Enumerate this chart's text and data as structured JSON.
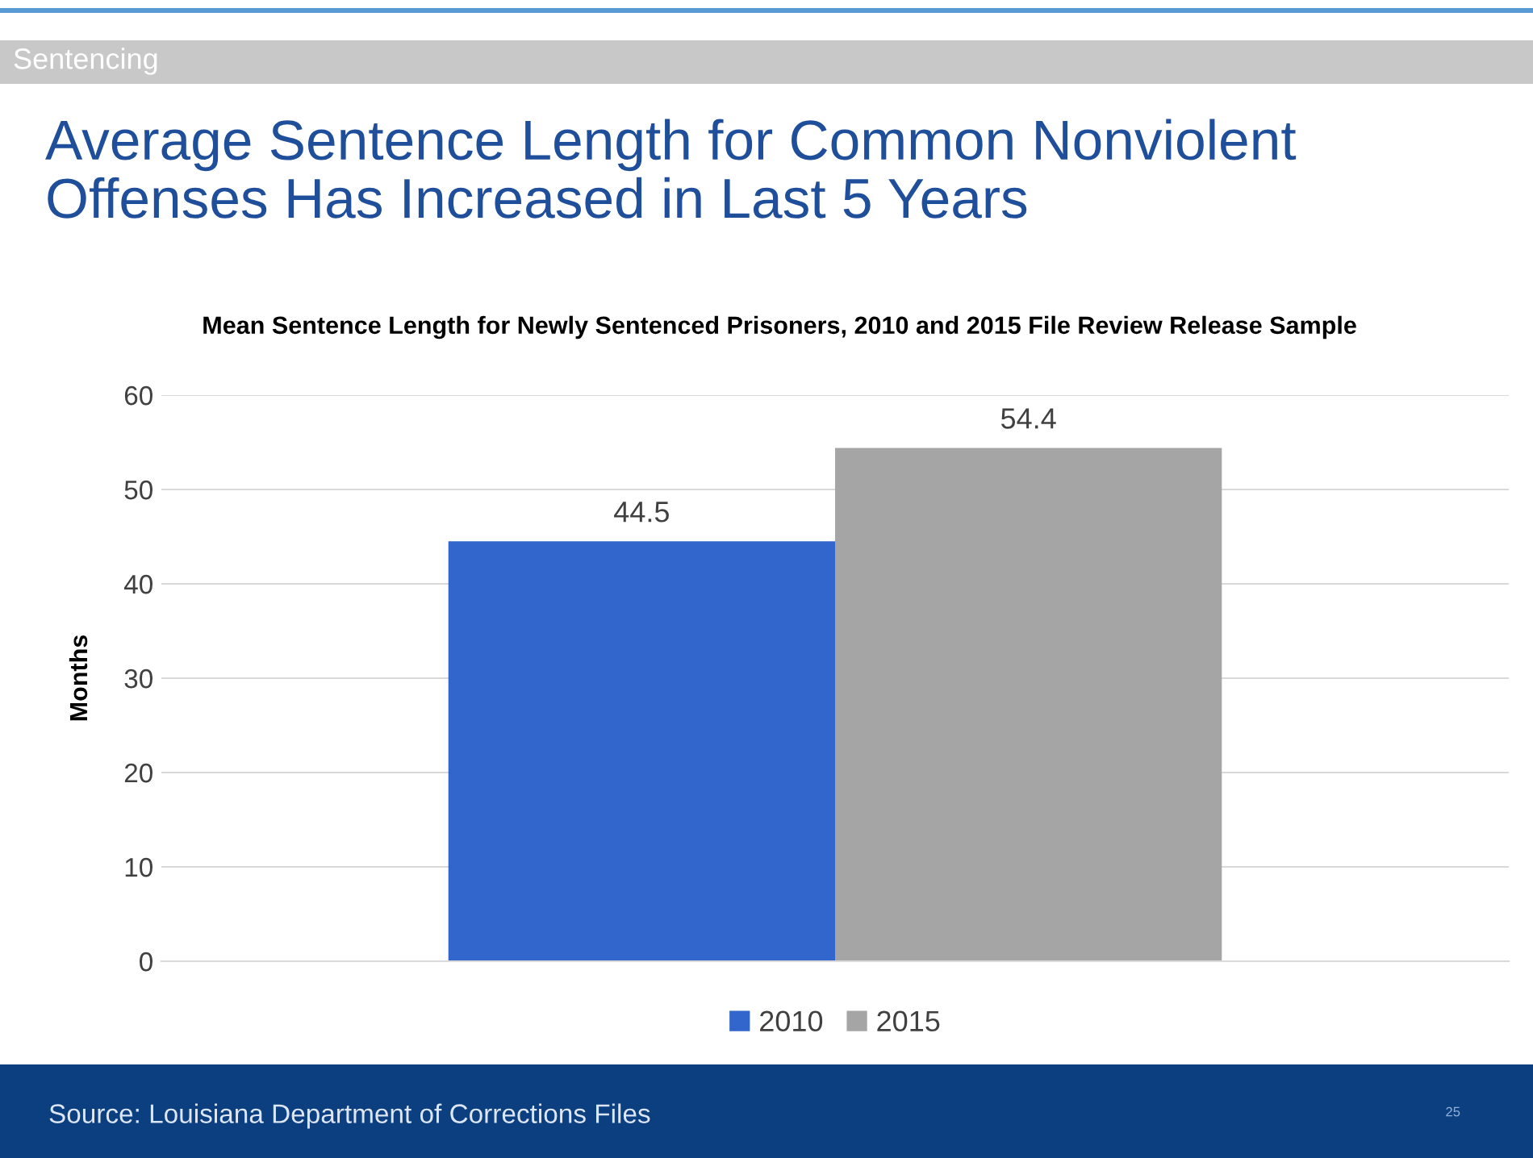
{
  "chart_data": {
    "type": "bar",
    "title": "Average Sentence Length for Common Nonviolent Offenses Has Increased in Last 5 Years",
    "subtitle": "Mean Sentence Length for Newly Sentenced Prisoners, 2010 and 2015 File Review Release Sample",
    "ylabel": "Months",
    "categories": [
      null
    ],
    "series": [
      {
        "name": "2010",
        "color": "#3366cc",
        "values": [
          44.5
        ]
      },
      {
        "name": "2015",
        "color": "#a5a5a5",
        "values": [
          54.4
        ]
      }
    ],
    "ylim": [
      0,
      60
    ],
    "yticks": [
      0,
      10,
      20,
      30,
      40,
      50,
      60
    ],
    "grid": "y",
    "legend": "bottom",
    "data_labels": true,
    "annotations": [
      "Sentencing",
      "Source: Louisiana Department of Corrections Files",
      "25"
    ]
  }
}
